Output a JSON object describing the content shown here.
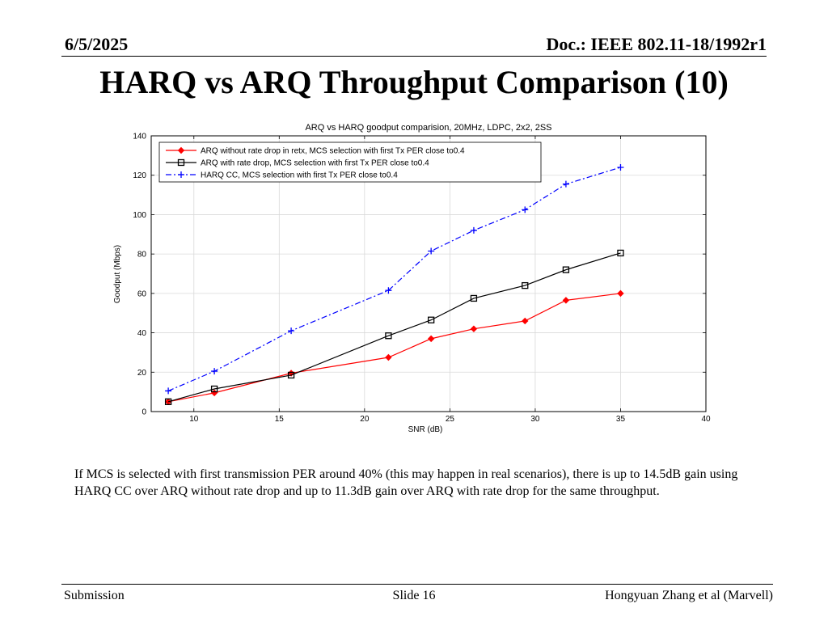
{
  "header": {
    "date": "6/5/2025",
    "doc": "Doc.: IEEE 802.11-18/1992r1"
  },
  "slide_title": "HARQ vs ARQ Throughput Comparison (10)",
  "description": "If MCS is selected with first transmission PER around 40% (this may happen in real scenarios), there is up to 14.5dB gain using HARQ CC over ARQ without rate drop and up to 11.3dB gain over ARQ with rate drop for the same throughput.",
  "footer": {
    "left": "Submission",
    "center": "Slide 16",
    "right": "Hongyuan Zhang et al (Marvell)"
  },
  "chart_data": {
    "type": "line",
    "title": "ARQ vs HARQ goodput comparision, 20MHz, LDPC, 2x2, 2SS",
    "xlabel": "SNR (dB)",
    "ylabel": "Goodput (Mbps)",
    "xlim": [
      7.5,
      40
    ],
    "ylim": [
      0,
      140
    ],
    "xticks": [
      10,
      15,
      20,
      25,
      30,
      35,
      40
    ],
    "yticks": [
      0,
      20,
      40,
      60,
      80,
      100,
      120,
      140
    ],
    "grid": true,
    "legend_position": "top-left",
    "series": [
      {
        "name": "ARQ without rate drop in retx, MCS selection with first Tx PER close to0.4",
        "color": "#ff0000",
        "line_style": "solid",
        "marker": "diamond",
        "x": [
          8.5,
          11.2,
          15.7,
          21.4,
          23.9,
          26.4,
          29.4,
          31.8,
          35
        ],
        "y": [
          5,
          9.5,
          19.5,
          27.5,
          37,
          42,
          46,
          56.5,
          60
        ]
      },
      {
        "name": "ARQ with rate drop, MCS selection with first Tx PER close to0.4",
        "color": "#000000",
        "line_style": "solid",
        "marker": "square",
        "x": [
          8.5,
          11.2,
          15.7,
          21.4,
          23.9,
          26.4,
          29.4,
          31.8,
          35
        ],
        "y": [
          5,
          11.5,
          18.5,
          38.5,
          46.5,
          57.5,
          64,
          72,
          80.5
        ]
      },
      {
        "name": "HARQ CC, MCS selection with first Tx PER close to0.4",
        "color": "#0000ff",
        "line_style": "dashdot",
        "marker": "plus",
        "x": [
          8.5,
          11.2,
          15.7,
          21.4,
          23.9,
          26.4,
          29.4,
          31.8,
          35
        ],
        "y": [
          10.5,
          20.5,
          41,
          61.5,
          81.5,
          92,
          102.5,
          115.5,
          124
        ]
      }
    ]
  }
}
